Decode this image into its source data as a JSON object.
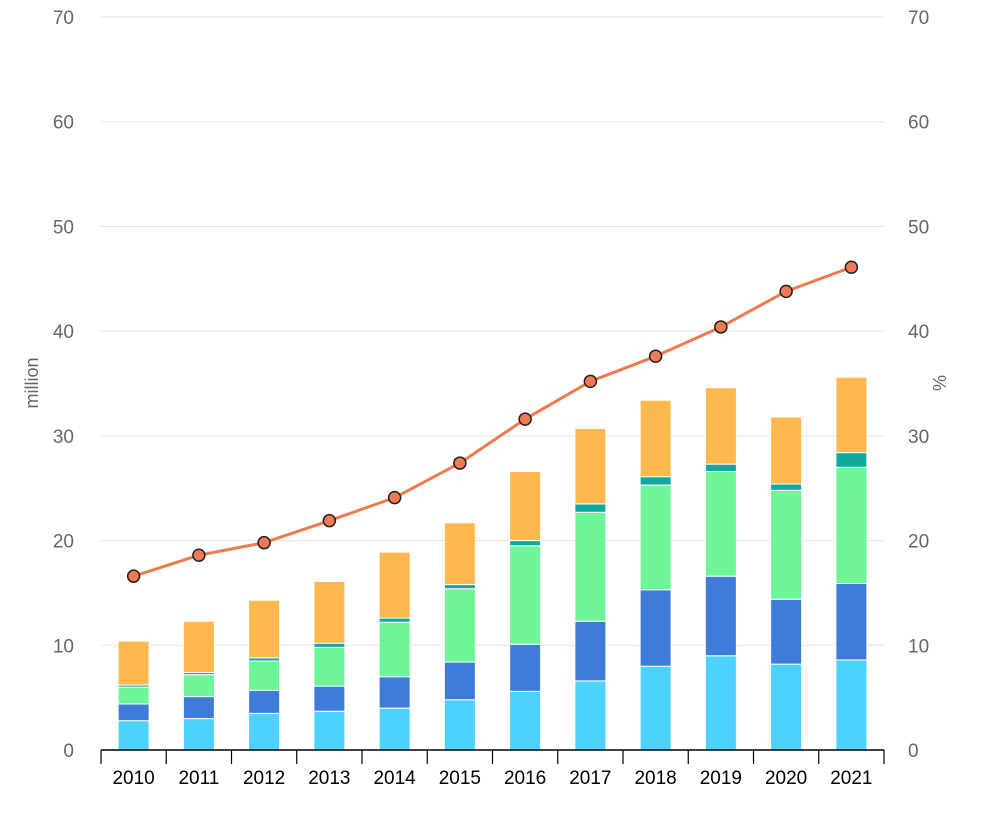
{
  "chart_data": {
    "type": "bar",
    "stacked": true,
    "categories": [
      "2010",
      "2011",
      "2012",
      "2013",
      "2014",
      "2015",
      "2016",
      "2017",
      "2018",
      "2019",
      "2020",
      "2021"
    ],
    "y_left": {
      "label": "million",
      "ticks": [
        "0",
        "10",
        "20",
        "30",
        "40",
        "50",
        "60",
        "70"
      ],
      "ylim": [
        0,
        70
      ]
    },
    "y_right": {
      "label": "%",
      "ticks": [
        "0",
        "10",
        "20",
        "30",
        "40",
        "50",
        "60",
        "70"
      ],
      "ylim": [
        0,
        70
      ]
    },
    "grid": true,
    "series": [
      {
        "values": [
          2.8,
          3.0,
          3.5,
          3.7,
          4.0,
          4.8,
          5.6,
          6.6,
          8.0,
          9.0,
          8.2,
          8.6
        ],
        "color": "#4dd2ff"
      },
      {
        "values": [
          1.6,
          2.1,
          2.2,
          2.4,
          3.0,
          3.6,
          4.5,
          5.7,
          7.3,
          7.6,
          6.2,
          7.3
        ],
        "color": "#3f7bd9"
      },
      {
        "values": [
          1.6,
          2.1,
          2.8,
          3.7,
          5.2,
          7.0,
          9.4,
          10.4,
          10.0,
          10.0,
          10.4,
          11.1
        ],
        "color": "#6ef597"
      },
      {
        "values": [
          0.2,
          0.2,
          0.3,
          0.4,
          0.4,
          0.4,
          0.5,
          0.8,
          0.8,
          0.7,
          0.6,
          1.4
        ],
        "color": "#13a89e"
      },
      {
        "values": [
          4.2,
          4.9,
          5.5,
          5.9,
          6.3,
          5.9,
          6.6,
          7.2,
          7.3,
          7.3,
          6.4,
          7.2
        ],
        "color": "#ffb84d"
      }
    ],
    "line": {
      "axis": "right",
      "values": [
        16.6,
        18.6,
        19.8,
        21.9,
        24.1,
        27.4,
        31.6,
        35.2,
        37.6,
        40.4,
        43.8,
        46.1
      ],
      "color": "#ef7a4e",
      "marker_color": "#f07a55"
    }
  }
}
